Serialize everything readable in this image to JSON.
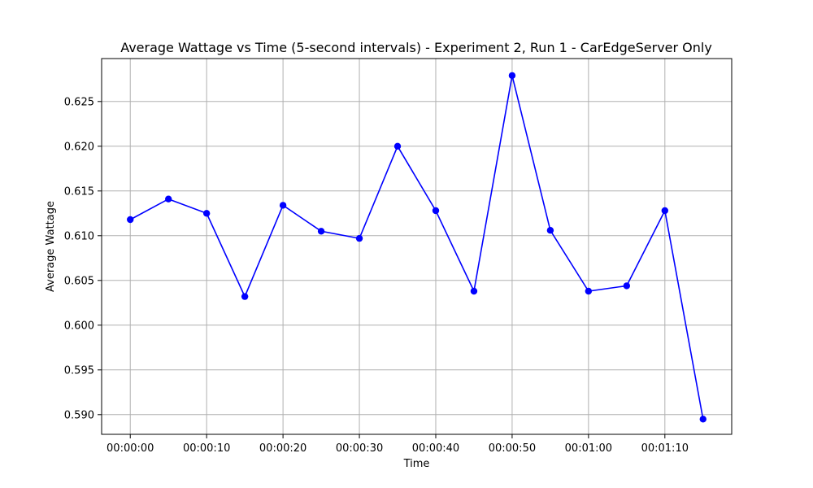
{
  "chart_data": {
    "type": "line",
    "title": "Average Wattage vs Time (5-second intervals)  - Experiment 2, Run 1 - CarEdgeServer Only",
    "xlabel": "Time",
    "ylabel": "Average Wattage",
    "x_seconds": [
      0,
      5,
      10,
      15,
      20,
      25,
      30,
      35,
      40,
      45,
      50,
      55,
      60,
      65,
      70,
      75
    ],
    "x_ticks": [
      {
        "value": 0,
        "label": "00:00:00"
      },
      {
        "value": 10,
        "label": "00:00:10"
      },
      {
        "value": 20,
        "label": "00:00:20"
      },
      {
        "value": 30,
        "label": "00:00:30"
      },
      {
        "value": 40,
        "label": "00:00:40"
      },
      {
        "value": 50,
        "label": "00:00:50"
      },
      {
        "value": 60,
        "label": "00:01:00"
      },
      {
        "value": 70,
        "label": "00:01:10"
      }
    ],
    "y_ticks": [
      {
        "value": 0.59,
        "label": "0.590"
      },
      {
        "value": 0.595,
        "label": "0.595"
      },
      {
        "value": 0.6,
        "label": "0.600"
      },
      {
        "value": 0.605,
        "label": "0.605"
      },
      {
        "value": 0.61,
        "label": "0.610"
      },
      {
        "value": 0.615,
        "label": "0.615"
      },
      {
        "value": 0.62,
        "label": "0.620"
      },
      {
        "value": 0.625,
        "label": "0.625"
      }
    ],
    "series": [
      {
        "color": "#0000ff",
        "marker": "circle",
        "values": [
          0.6118,
          0.6141,
          0.6125,
          0.6032,
          0.6134,
          0.6105,
          0.6097,
          0.62,
          0.6128,
          0.6038,
          0.6279,
          0.6106,
          0.6038,
          0.6044,
          0.6128,
          0.5895
        ]
      }
    ],
    "xlim": [
      -3.75,
      78.75
    ],
    "ylim": [
      0.5878,
      0.6298
    ],
    "grid": true
  }
}
